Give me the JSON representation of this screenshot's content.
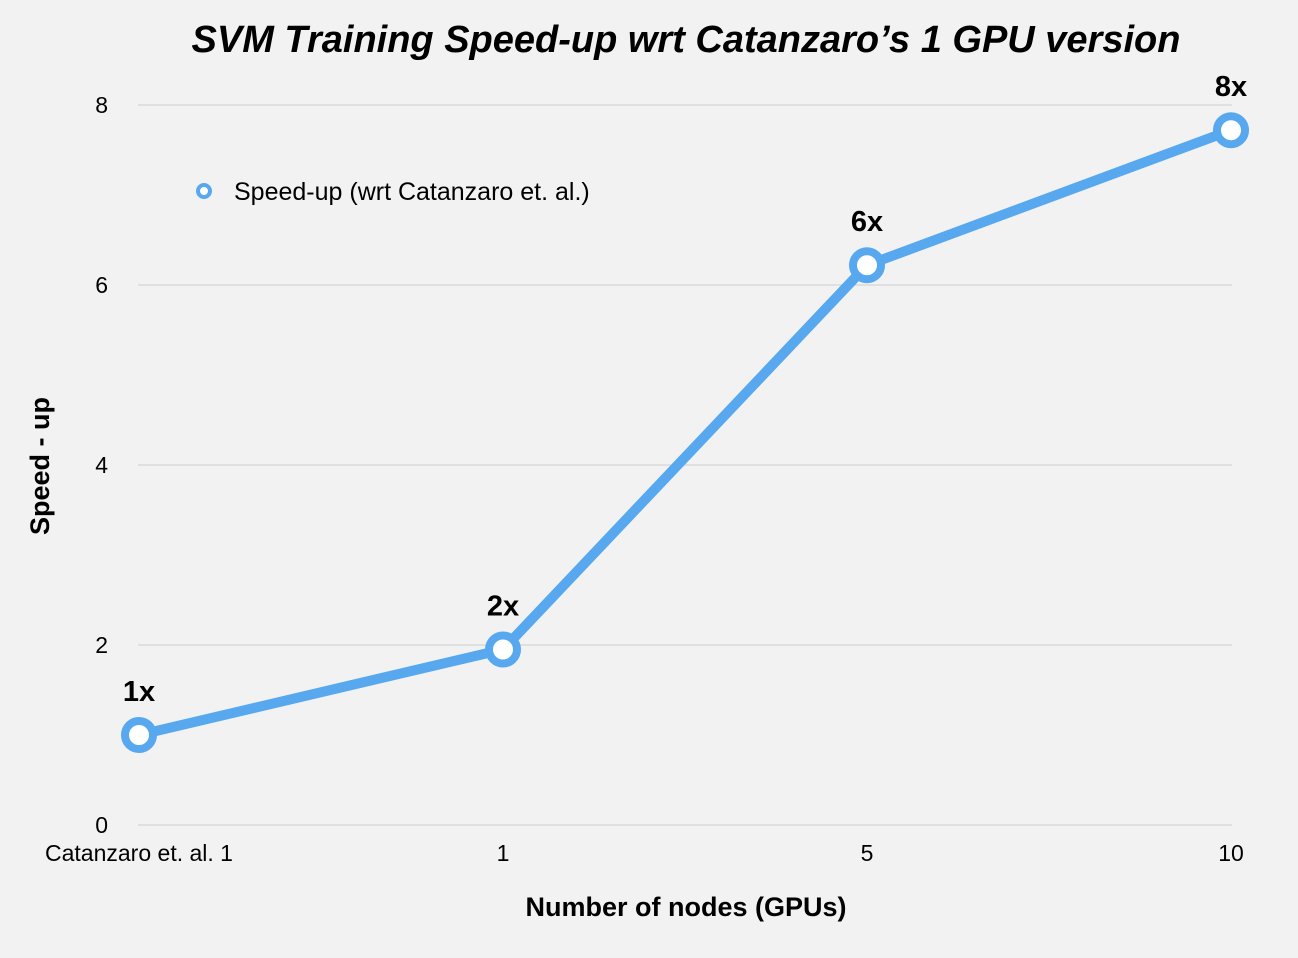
{
  "chart_data": {
    "type": "line",
    "title": "SVM Training Speed-up wrt Catanzaro’s 1 GPU version",
    "xlabel": "Number of nodes (GPUs)",
    "ylabel": "Speed - up",
    "categories": [
      "Catanzaro et. al. 1",
      "1",
      "5",
      "10"
    ],
    "ylim": [
      0,
      8
    ],
    "yticks": [
      0,
      2,
      4,
      6,
      8
    ],
    "grid": "horizontal",
    "legend_position": "top-left",
    "series": [
      {
        "name": "Speed-up (wrt Catanzaro et. al.)",
        "color": "#57a8ef",
        "values": [
          1.0,
          1.95,
          6.22,
          7.72
        ],
        "labels": [
          "1x",
          "2x",
          "6x",
          "8x"
        ]
      }
    ]
  }
}
